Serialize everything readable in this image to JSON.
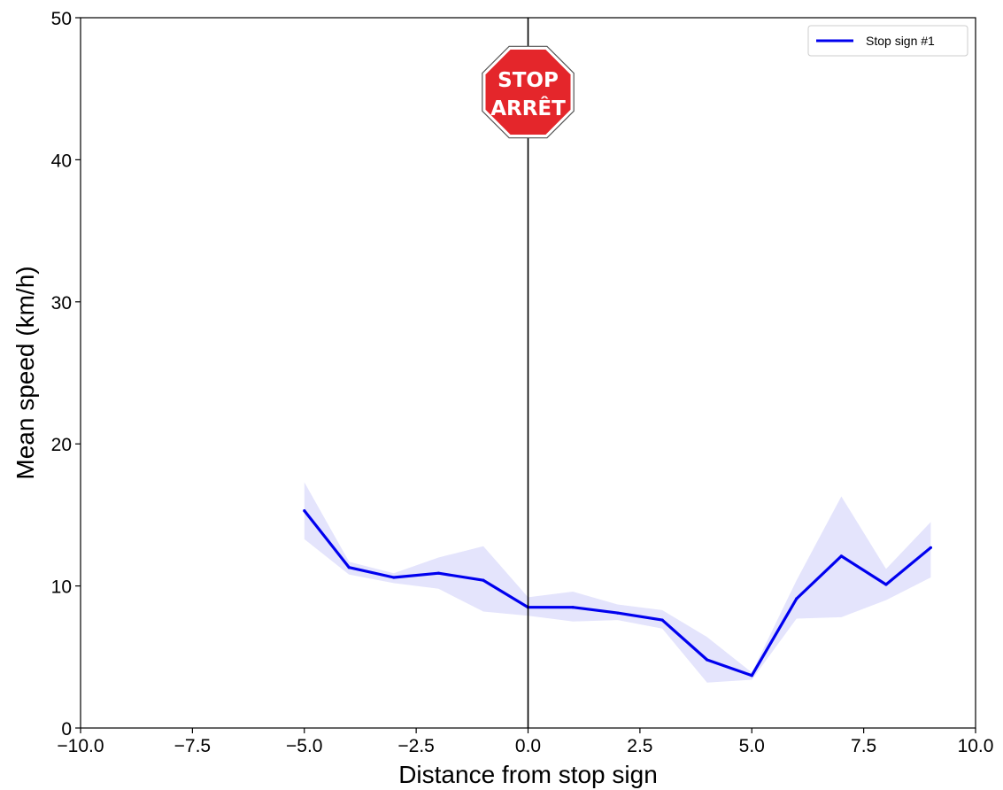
{
  "chart_data": {
    "type": "line",
    "xlabel": "Distance from stop sign",
    "ylabel": "Mean speed (km/h)",
    "xlim": [
      -10,
      10
    ],
    "ylim": [
      0,
      50
    ],
    "x_ticks": [
      "−10.0",
      "−7.5",
      "−5.0",
      "−2.5",
      "0.0",
      "2.5",
      "5.0",
      "7.5",
      "10.0"
    ],
    "x_tick_values": [
      -10,
      -7.5,
      -5,
      -2.5,
      0,
      2.5,
      5,
      7.5,
      10
    ],
    "y_ticks": [
      "0",
      "10",
      "20",
      "30",
      "40",
      "50"
    ],
    "y_tick_values": [
      0,
      10,
      20,
      30,
      40,
      50
    ],
    "grid": false,
    "legend_position": "top-right",
    "vertical_line_x": 0,
    "series": [
      {
        "name": "Stop sign #1",
        "color": "#0000ee",
        "band_color": "#e4e4fc",
        "x": [
          -5,
          -4,
          -3,
          -2,
          -1,
          0,
          1,
          2,
          3,
          4,
          5,
          6,
          7,
          8,
          9
        ],
        "y": [
          15.3,
          11.3,
          10.6,
          10.9,
          10.4,
          8.5,
          8.5,
          8.1,
          7.6,
          4.8,
          3.7,
          9.1,
          12.1,
          10.1,
          12.7
        ],
        "upper": [
          17.3,
          11.7,
          10.9,
          12.0,
          12.8,
          9.2,
          9.6,
          8.7,
          8.3,
          6.4,
          3.9,
          10.4,
          16.3,
          11.2,
          14.5
        ],
        "lower": [
          13.3,
          10.8,
          10.2,
          9.8,
          8.2,
          7.9,
          7.5,
          7.6,
          7.0,
          3.2,
          3.4,
          7.7,
          7.8,
          9.0,
          10.6
        ]
      }
    ]
  },
  "stop_sign": {
    "line1": "STOP",
    "line2": "ARRÊT",
    "color": "#e4262b"
  }
}
